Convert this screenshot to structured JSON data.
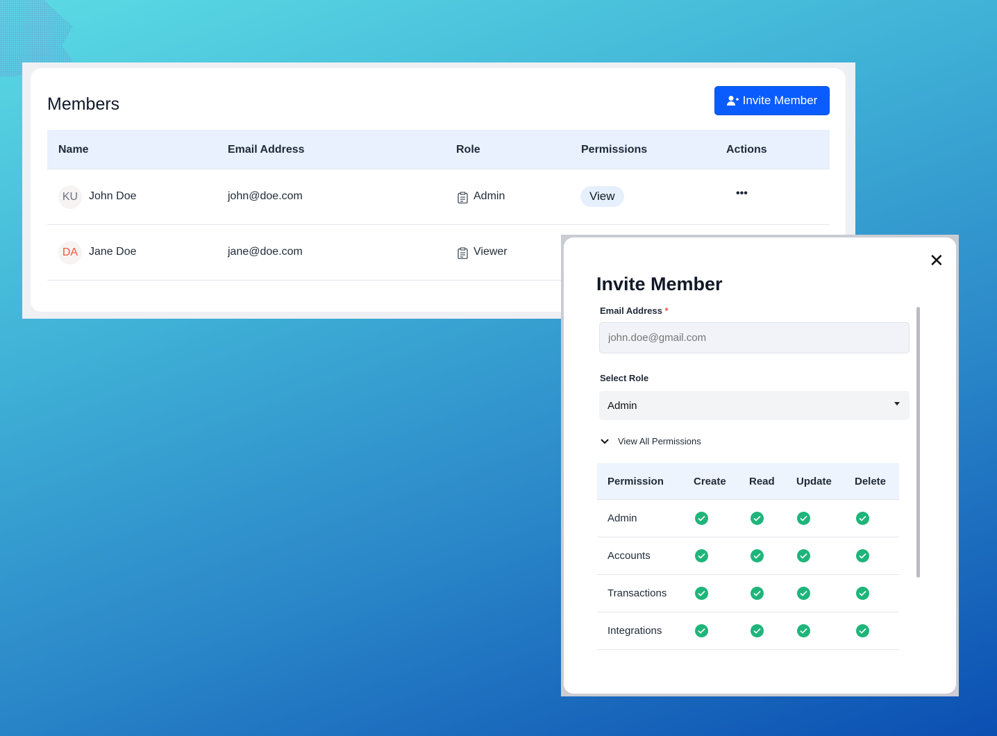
{
  "members": {
    "title": "Members",
    "invite_button": "Invite Member",
    "columns": [
      "Name",
      "Email Address",
      "Role",
      "Permissions",
      "Actions"
    ],
    "rows": [
      {
        "initials": "KU",
        "initials_color": "#6b7280",
        "name": "John Doe",
        "email": "john@doe.com",
        "role": "Admin",
        "permission": "View",
        "actions": "•••"
      },
      {
        "initials": "DA",
        "initials_color": "#f0573e",
        "name": "Jane Doe",
        "email": "jane@doe.com",
        "role": "Viewer"
      }
    ]
  },
  "modal": {
    "title": "Invite Member",
    "close": "✕",
    "email_label": "Email Address",
    "required_mark": "*",
    "email_placeholder": "john.doe@gmail.com",
    "role_label": "Select Role",
    "role_value": "Admin",
    "view_all": "View All Permissions",
    "perm_columns": [
      "Permission",
      "Create",
      "Read",
      "Update",
      "Delete"
    ],
    "perm_rows": [
      {
        "name": "Admin",
        "create": true,
        "read": true,
        "update": true,
        "delete": true
      },
      {
        "name": "Accounts",
        "create": true,
        "read": true,
        "update": true,
        "delete": true
      },
      {
        "name": "Transactions",
        "create": true,
        "read": true,
        "update": true,
        "delete": true
      },
      {
        "name": "Integrations",
        "create": true,
        "read": true,
        "update": true,
        "delete": true
      }
    ],
    "check_color": "#1fb57a"
  },
  "colors": {
    "accent": "#0a5cff"
  }
}
